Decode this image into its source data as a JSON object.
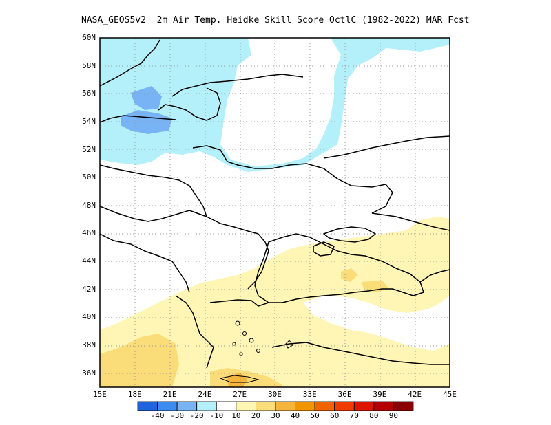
{
  "title": "NASA_GEOS5v2  2m Air Temp. Heidke Skill Score OctlC (1982-2022) MAR Fcst",
  "map": {
    "lat_labels": [
      "60N",
      "58N",
      "56N",
      "54N",
      "52N",
      "50N",
      "48N",
      "46N",
      "44N",
      "42N",
      "40N",
      "38N",
      "36N"
    ],
    "lon_labels": [
      "15E",
      "18E",
      "21E",
      "24E",
      "27E",
      "30E",
      "33E",
      "36E",
      "39E",
      "42E",
      "45E"
    ],
    "lon_range": [
      15,
      45
    ],
    "lat_range": [
      35,
      60
    ],
    "region": "Eastern Europe / Black Sea",
    "land_color": "#ffffff",
    "boundary_color": "#000000",
    "grid": "dotted"
  },
  "colorbar": {
    "labels": [
      "-40",
      "-30",
      "-20",
      "-10",
      "10",
      "20",
      "30",
      "40",
      "50",
      "60",
      "70",
      "80",
      "90"
    ],
    "colors": [
      "#1e64dc",
      "#3c8cf0",
      "#78b4f5",
      "#b4f0fa",
      "#ffffff",
      "#fff5b4",
      "#fadc78",
      "#f5b43c",
      "#f09600",
      "#f06400",
      "#f03c00",
      "#dc1400",
      "#b40000",
      "#8c0000"
    ]
  }
}
